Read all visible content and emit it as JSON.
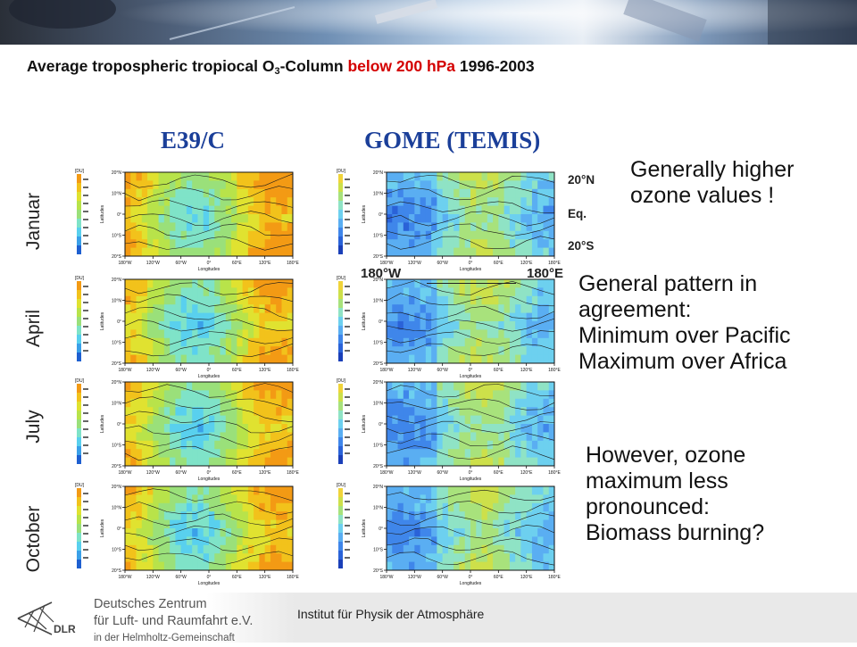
{
  "slide": {
    "title_prefix": "Average tropospheric tropiocal O",
    "title_sub": "3",
    "title_mid": "-Column ",
    "title_highlight": "below 200 hPa",
    "title_suffix": " 1996-2003"
  },
  "columns": {
    "left": "E39/C",
    "right": "GOME (TEMIS)"
  },
  "months": [
    "Januar",
    "April",
    "July",
    "October"
  ],
  "panel_text": {
    "unit": "[DU]",
    "y_axis": "Latitudes",
    "x_axis": "Longitudes",
    "lat_ticks": [
      "20°N",
      "10°N",
      "0°",
      "10°S",
      "20°S"
    ],
    "lon_ticks": [
      "180°W",
      "120°W",
      "60°W",
      "0°",
      "60°E",
      "120°E",
      "180°E"
    ]
  },
  "axis_labels": {
    "lat_n": "20°N",
    "lat_eq": "Eq.",
    "lat_s": "20°S",
    "lon_w": "180°W",
    "lon_e": "180°E"
  },
  "notes": {
    "higher": [
      "Generally higher",
      "ozone values !"
    ],
    "pattern": [
      "General pattern in",
      "agreement:",
      "Minimum over Pacific",
      "Maximum over Africa"
    ],
    "however": [
      "However, ozone",
      "maximum less",
      "pronounced:",
      "Biomass burning?"
    ]
  },
  "footer": {
    "org_line1": "Deutsches Zentrum",
    "org_line2": "für Luft- und Raumfahrt e.V.",
    "org_line3": "in der Helmholtz-Gemeinschaft",
    "logo_text": "DLR",
    "institute": "Institut für Physik der Atmosphäre"
  },
  "colors": {
    "heading_blue": "#1b3f99",
    "highlight_red": "#d40000"
  }
}
